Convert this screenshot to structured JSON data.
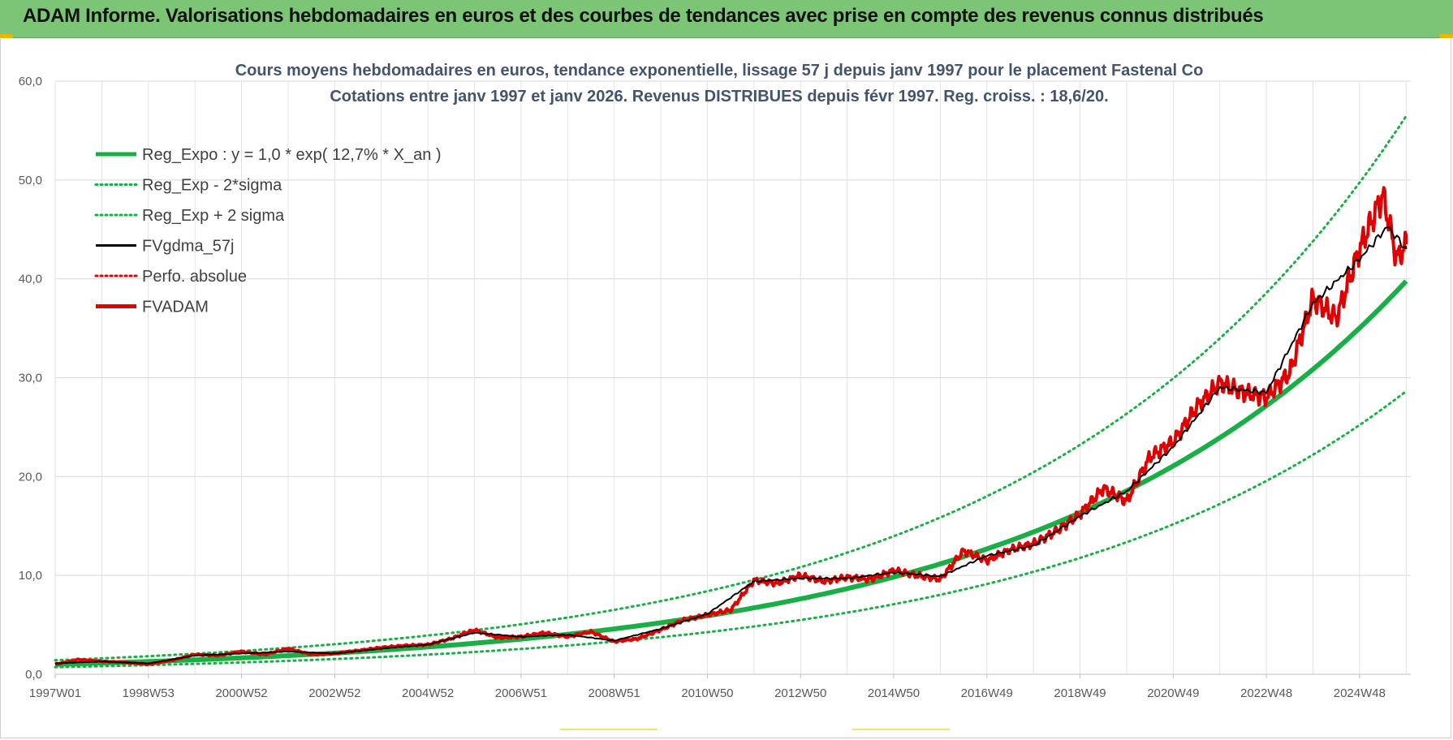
{
  "banner": {
    "title": "ADAM Informe. Valorisations hebdomadaires en euros et des courbes de tendances avec prise en compte des revenus connus distribués"
  },
  "chart_data": {
    "type": "line",
    "title": "Cours moyens hebdomadaires en euros, tendance exponentielle, lissage 57 j depuis janv 1997 pour le placement Fastenal Co",
    "subtitle": "Cotations entre janv 1997 et janv 2026. Revenus DISTRIBUES depuis févr 1997. Reg. croiss. : 18,6/20.",
    "ylim": [
      0,
      60
    ],
    "xlim": [
      1997.0,
      2026.1
    ],
    "y_ticks": [
      "0,0",
      "10,0",
      "20,0",
      "30,0",
      "40,0",
      "50,0",
      "60,0"
    ],
    "y_tick_values": [
      0,
      10,
      20,
      30,
      40,
      50,
      60
    ],
    "x_tick_labels": [
      "1997W01",
      "1998W53",
      "2000W52",
      "2002W52",
      "2004W52",
      "2006W51",
      "2008W51",
      "2010W50",
      "2012W50",
      "2014W50",
      "2016W49",
      "2018W49",
      "2020W49",
      "2022W48",
      "2024W48"
    ],
    "x_tick_years": [
      1997.0,
      1999.0,
      2001.0,
      2003.0,
      2005.0,
      2007.0,
      2009.0,
      2011.0,
      2013.0,
      2015.0,
      2017.0,
      2019.0,
      2021.0,
      2023.0,
      2025.0
    ],
    "legend": [
      {
        "name": "Reg_Expo : y = 1,0 * exp( 12,7% *  X_an )",
        "color": "#1aae46",
        "style": "solid-thick"
      },
      {
        "name": "Reg_Exp - 2*sigma",
        "color": "#1aae46",
        "style": "dotted"
      },
      {
        "name": "Reg_Exp + 2 sigma",
        "color": "#1aae46",
        "style": "dotted"
      },
      {
        "name": "FVgdma_57j",
        "color": "#000000",
        "style": "solid"
      },
      {
        "name": "Perfo. absolue",
        "color": "#e00000",
        "style": "dotted"
      },
      {
        "name": "FVADAM",
        "color": "#e00000",
        "style": "solid-thick"
      }
    ],
    "regression": {
      "a": 1.0,
      "rate": 0.127
    },
    "bands": {
      "lower_factor": 0.72,
      "upper_factor": 1.42
    },
    "series_fvadam": {
      "name": "FVADAM",
      "x": [
        1997.0,
        1997.5,
        1998.0,
        1998.5,
        1999.0,
        1999.5,
        2000.0,
        2000.5,
        2001.0,
        2001.5,
        2002.0,
        2002.5,
        2003.0,
        2003.5,
        2004.0,
        2004.5,
        2005.0,
        2005.5,
        2006.0,
        2006.5,
        2007.0,
        2007.5,
        2008.0,
        2008.5,
        2009.0,
        2009.5,
        2010.0,
        2010.5,
        2011.0,
        2011.5,
        2012.0,
        2012.5,
        2013.0,
        2013.5,
        2014.0,
        2014.5,
        2015.0,
        2015.5,
        2016.0,
        2016.5,
        2017.0,
        2017.5,
        2018.0,
        2018.5,
        2019.0,
        2019.5,
        2020.0,
        2020.5,
        2021.0,
        2021.5,
        2022.0,
        2022.5,
        2023.0,
        2023.5,
        2024.0,
        2024.5,
        2025.0,
        2025.5,
        2025.8,
        2026.0
      ],
      "values": [
        1.0,
        1.5,
        1.3,
        1.2,
        1.0,
        1.4,
        2.0,
        1.9,
        2.3,
        2.0,
        2.6,
        2.0,
        2.1,
        2.4,
        2.7,
        2.9,
        3.0,
        3.6,
        4.5,
        3.7,
        3.8,
        4.2,
        3.8,
        4.3,
        3.3,
        3.6,
        4.5,
        5.5,
        6.0,
        6.5,
        9.5,
        9.2,
        10.0,
        9.4,
        9.8,
        9.6,
        10.5,
        10.0,
        9.6,
        12.5,
        11.5,
        12.6,
        13.2,
        14.5,
        16.2,
        18.8,
        17.5,
        22.0,
        23.5,
        27.0,
        29.5,
        28.5,
        28.0,
        30.5,
        38.0,
        36.0,
        43.0,
        48.5,
        42.0,
        43.5
      ]
    },
    "series_gdma": {
      "name": "FVgdma_57j",
      "x": [
        1997.0,
        1998.0,
        1999.0,
        2000.0,
        2001.0,
        2002.0,
        2003.0,
        2004.0,
        2005.0,
        2006.0,
        2007.0,
        2008.0,
        2009.0,
        2010.0,
        2011.0,
        2012.0,
        2013.0,
        2014.0,
        2015.0,
        2016.0,
        2017.0,
        2018.0,
        2019.0,
        2020.0,
        2021.0,
        2022.0,
        2023.0,
        2024.0,
        2025.0,
        2025.6,
        2026.0
      ],
      "values": [
        1.1,
        1.3,
        1.1,
        1.9,
        2.1,
        2.3,
        2.1,
        2.6,
        3.0,
        4.2,
        3.8,
        4.0,
        3.4,
        4.6,
        6.1,
        9.4,
        9.7,
        9.7,
        10.3,
        9.9,
        12.0,
        13.0,
        16.0,
        18.5,
        23.0,
        29.0,
        28.5,
        37.5,
        42.0,
        45.3,
        43.0
      ]
    }
  }
}
